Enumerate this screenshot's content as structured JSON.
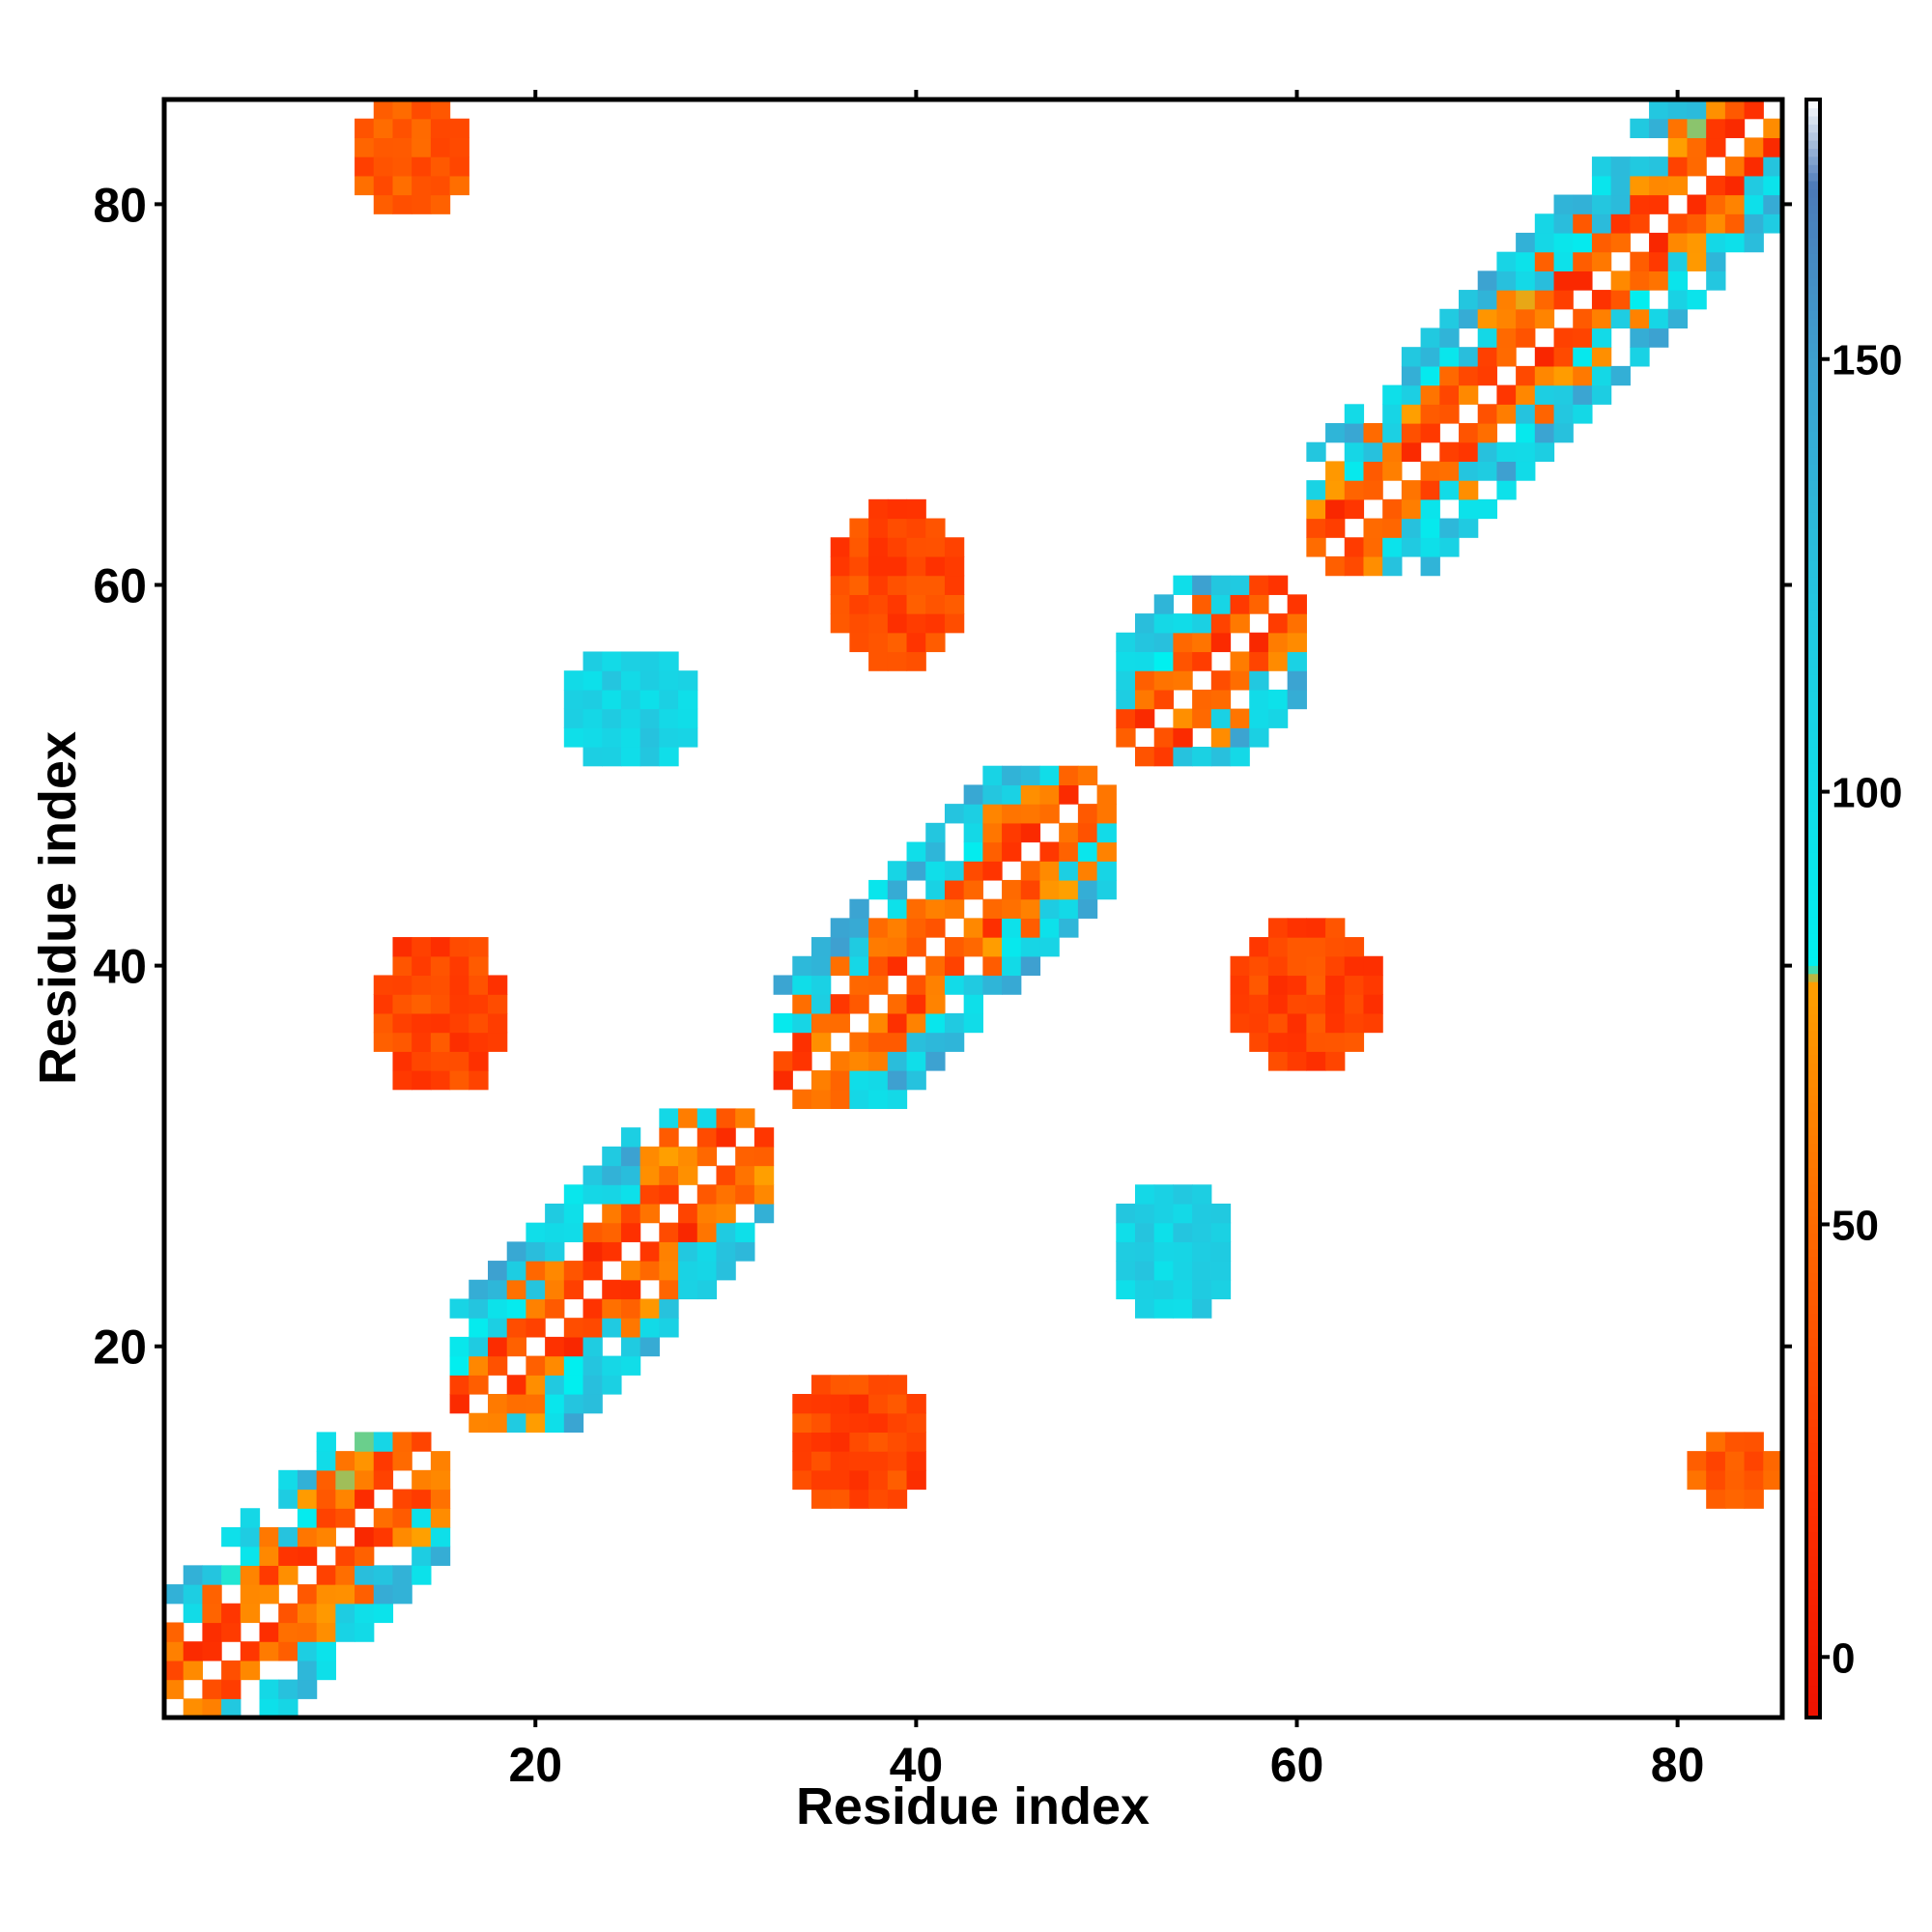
{
  "chart_data": {
    "type": "heatmap",
    "title": "",
    "xlabel": "Residue index",
    "ylabel": "Residue index",
    "xlim": [
      0.5,
      85.5
    ],
    "ylim": [
      0.5,
      85.5
    ],
    "x_ticks": [
      20,
      40,
      60,
      80
    ],
    "y_ticks": [
      20,
      40,
      60,
      80
    ],
    "grid": false,
    "legend": "colorbar-right",
    "colorbar": {
      "ticks": [
        0,
        50,
        100,
        150
      ],
      "range": [
        -7,
        180
      ],
      "stops": [
        {
          "value": -7,
          "color": "#ee1100"
        },
        {
          "value": 20,
          "color": "#ff3300"
        },
        {
          "value": 50,
          "color": "#ff6a00"
        },
        {
          "value": 78,
          "color": "#ffa000"
        },
        {
          "value": 80,
          "color": "#00f0f0"
        },
        {
          "value": 120,
          "color": "#22c8e0"
        },
        {
          "value": 150,
          "color": "#3ea0d0"
        },
        {
          "value": 170,
          "color": "#4c7ab8"
        },
        {
          "value": 180,
          "color": "#ffffff"
        }
      ]
    },
    "regions": [
      {
        "x": [
          1,
          15
        ],
        "y": [
          1,
          15
        ],
        "diag": "self"
      },
      {
        "x": [
          16,
          32
        ],
        "y": [
          16,
          32
        ],
        "diag": "self"
      },
      {
        "x": [
          33,
          50
        ],
        "y": [
          33,
          50
        ],
        "diag": "self"
      },
      {
        "x": [
          51,
          60
        ],
        "y": [
          51,
          60
        ],
        "diag": "self"
      },
      {
        "x": [
          61,
          85
        ],
        "y": [
          61,
          85
        ],
        "diag": "self"
      }
    ],
    "blobs": [
      {
        "x": [
          34,
          40
        ],
        "y": [
          12,
          18
        ],
        "value": 30
      },
      {
        "x": [
          36,
          42
        ],
        "y": [
          56,
          64
        ],
        "value": 30
      },
      {
        "x": [
          12,
          18
        ],
        "y": [
          34,
          41
        ],
        "value": 30
      },
      {
        "x": [
          57,
          64
        ],
        "y": [
          35,
          42
        ],
        "value": 30
      },
      {
        "x": [
          81,
          85
        ],
        "y": [
          12,
          15
        ],
        "value": 40
      },
      {
        "x": [
          11,
          16
        ],
        "y": [
          80,
          85
        ],
        "value": 40
      },
      {
        "x": [
          51,
          56
        ],
        "y": [
          22,
          28
        ],
        "value": 110
      },
      {
        "x": [
          22,
          28
        ],
        "y": [
          51,
          56
        ],
        "value": 110
      }
    ]
  }
}
